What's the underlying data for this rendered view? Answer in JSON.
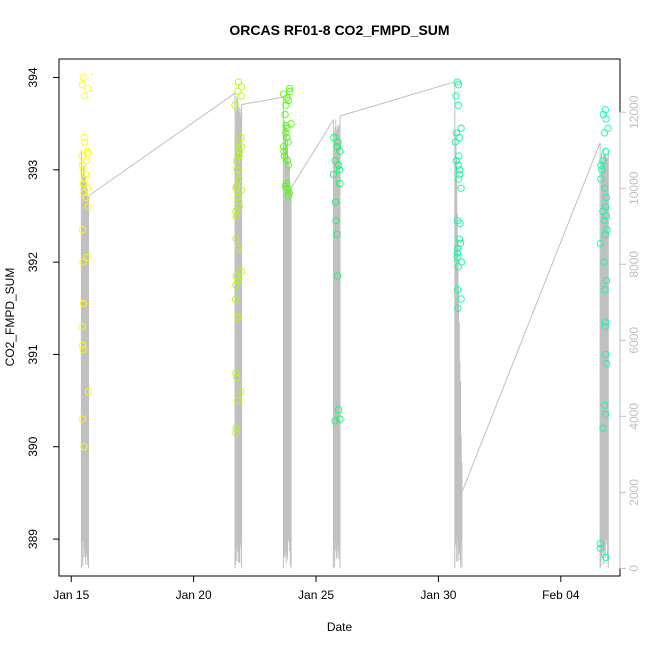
{
  "chart_data": {
    "type": "scatter",
    "title": "ORCAS RF01-8 CO2_FMPD_SUM",
    "xlabel": "Date",
    "ylabel": "CO2_FMPD_SUM",
    "x_axis": {
      "type": "date",
      "range": [
        "2016-01-14T12:00",
        "2016-02-06T10:00"
      ],
      "ticks": [
        {
          "date": "2016-01-15",
          "label": "Jan 15"
        },
        {
          "date": "2016-01-20",
          "label": "Jan 20"
        },
        {
          "date": "2016-01-25",
          "label": "Jan 25"
        },
        {
          "date": "2016-01-30",
          "label": "Jan 30"
        },
        {
          "date": "2016-02-04",
          "label": "Feb 04"
        }
      ]
    },
    "y_axis": {
      "range": [
        388.6,
        394.2
      ],
      "ticks": [
        389,
        390,
        391,
        392,
        393,
        394
      ]
    },
    "y2_axis": {
      "range": [
        -200,
        13400
      ],
      "ticks": [
        0,
        2000,
        4000,
        6000,
        8000,
        10000,
        12000
      ],
      "color": "#c0c0c0"
    },
    "altitude_line_color": "#c0c0c0",
    "flights": [
      {
        "date": "2016-01-15",
        "start_hour": 10.0,
        "end_hour": 17.0,
        "color": "#ffff00",
        "co2": [
          394.0,
          393.92,
          393.88,
          393.8,
          393.35,
          393.3,
          393.2,
          393.18,
          393.15,
          393.1,
          393.05,
          393.0,
          392.95,
          392.9,
          392.85,
          392.8,
          392.75,
          392.7,
          392.6,
          392.35,
          392.05,
          392.0,
          391.55,
          391.3,
          391.1,
          391.05,
          390.6,
          390.3,
          390.0
        ],
        "alt_start": 11000,
        "alt_end": 9800
      },
      {
        "date": "2016-01-21",
        "start_hour": 16.5,
        "end_hour": 23.0,
        "color": "#b3ff00",
        "co2": [
          393.95,
          393.9,
          393.85,
          393.8,
          393.7,
          393.35,
          393.3,
          393.25,
          393.2,
          393.15,
          393.1,
          393.0,
          392.9,
          392.82,
          392.8,
          392.78,
          392.7,
          392.6,
          392.55,
          392.5,
          392.25,
          392.15,
          391.9,
          391.85,
          391.8,
          391.75,
          391.6,
          391.4,
          390.8,
          390.75,
          390.6,
          390.5,
          390.2,
          390.15
        ],
        "alt_start": 12500,
        "alt_end": 12200
      },
      {
        "date": "2016-01-23",
        "start_hour": 16.0,
        "end_hour": 23.5,
        "color": "#4dff00",
        "co2": [
          393.88,
          393.85,
          393.82,
          393.78,
          393.75,
          393.7,
          393.6,
          393.5,
          393.48,
          393.45,
          393.4,
          393.35,
          393.3,
          393.25,
          393.2,
          393.15,
          393.1,
          393.05,
          392.85,
          392.82,
          392.8,
          392.75,
          392.72
        ],
        "alt_start": 12400,
        "alt_end": 10000
      },
      {
        "date": "2016-01-25",
        "start_hour": 17.0,
        "end_hour": 23.5,
        "color": "#00ff66",
        "co2": [
          393.35,
          393.3,
          393.25,
          393.2,
          393.1,
          393.05,
          393.0,
          392.95,
          392.85,
          392.65,
          392.45,
          392.3,
          391.85,
          390.4,
          390.3,
          390.28
        ],
        "alt_start": 11800,
        "alt_end": 11900
      },
      {
        "date": "2016-01-30",
        "start_hour": 16.0,
        "end_hour": 23.0,
        "color": "#00ff99",
        "co2": [
          393.95,
          393.92,
          393.8,
          393.7,
          393.45,
          393.4,
          393.35,
          393.3,
          393.15,
          393.1,
          393.05,
          393.0,
          392.95,
          392.9,
          392.8,
          392.45,
          392.42,
          392.25,
          392.2,
          392.15,
          392.1,
          392.05,
          392.0,
          391.95,
          391.7,
          391.6,
          391.5
        ],
        "alt_start": 12800,
        "alt_end": 2000
      },
      {
        "date": "2016-02-05",
        "start_hour": 14.5,
        "end_hour": 22.5,
        "color": "#00ffaa",
        "co2": [
          393.65,
          393.6,
          393.55,
          393.45,
          393.4,
          393.2,
          393.1,
          393.05,
          393.0,
          392.9,
          392.8,
          392.7,
          392.6,
          392.55,
          392.5,
          392.45,
          392.35,
          392.3,
          392.2,
          392.0,
          391.8,
          391.7,
          391.35,
          391.3,
          391.0,
          390.9,
          390.45,
          390.35,
          390.2,
          388.95,
          388.9,
          388.8
        ],
        "alt_start": 11200,
        "alt_end": 11000
      }
    ]
  }
}
